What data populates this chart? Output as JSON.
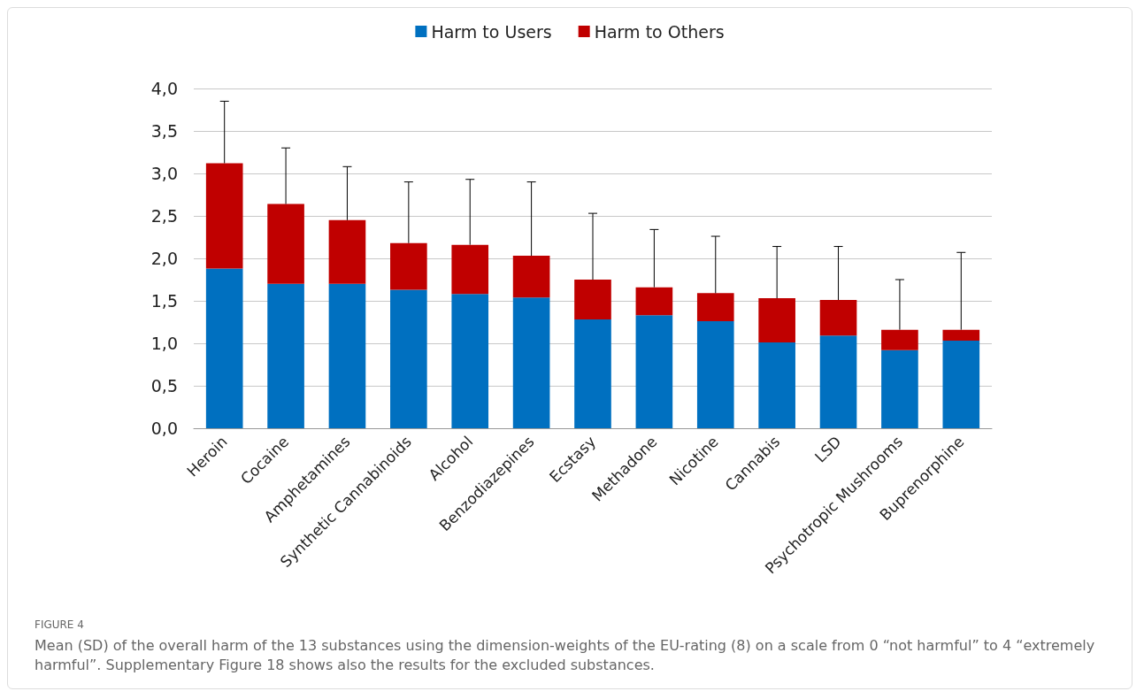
{
  "chart_data": {
    "type": "bar",
    "stacked": true,
    "categories": [
      "Heroin",
      "Cocaine",
      "Amphetamines",
      "Synthetic Cannabinoids",
      "Alcohol",
      "Benzodiazepines",
      "Ecstasy",
      "Methadone",
      "Nicotine",
      "Cannabis",
      "LSD",
      "Psychotropic Mushrooms",
      "Buprenorphine"
    ],
    "series": [
      {
        "name": "Harm to Users",
        "color": "#0070c0",
        "values": [
          1.88,
          1.7,
          1.7,
          1.63,
          1.58,
          1.54,
          1.28,
          1.33,
          1.26,
          1.01,
          1.09,
          0.92,
          1.03
        ]
      },
      {
        "name": "Harm to Others",
        "color": "#c00000",
        "values": [
          1.24,
          0.94,
          0.75,
          0.55,
          0.58,
          0.49,
          0.47,
          0.33,
          0.33,
          0.52,
          0.42,
          0.24,
          0.13
        ],
        "errors": [
          [
            3.12,
            3.85
          ],
          [
            2.64,
            3.3
          ],
          [
            2.45,
            3.08
          ],
          [
            2.18,
            2.9
          ],
          [
            2.16,
            2.93
          ],
          [
            2.03,
            2.9
          ],
          [
            1.75,
            2.53
          ],
          [
            1.66,
            2.34
          ],
          [
            1.59,
            2.26
          ],
          [
            1.53,
            2.14
          ],
          [
            1.51,
            2.14
          ],
          [
            1.16,
            1.75
          ],
          [
            1.16,
            2.07
          ]
        ]
      }
    ],
    "ylim": [
      0,
      4
    ],
    "yticks": [
      {
        "value": 0,
        "label": "0,0"
      },
      {
        "value": 0.5,
        "label": "0,5"
      },
      {
        "value": 1,
        "label": "1,0"
      },
      {
        "value": 1.5,
        "label": "1,5"
      },
      {
        "value": 2,
        "label": "2,0"
      },
      {
        "value": 2.5,
        "label": "2,5"
      },
      {
        "value": 3,
        "label": "3,0"
      },
      {
        "value": 3.5,
        "label": "3,5"
      },
      {
        "value": 4,
        "label": "4,0"
      }
    ],
    "grid": "y",
    "legend": "top",
    "annotations": [
      "FIGURE 4",
      "Mean (SD) of the overall harm of the 13 substances using the dimension-weights of the EU-rating (8) on a scale from 0 “not harmful” to 4 “extremely harmful”. Supplementary Figure 18 shows also the results for the excluded substances."
    ]
  }
}
